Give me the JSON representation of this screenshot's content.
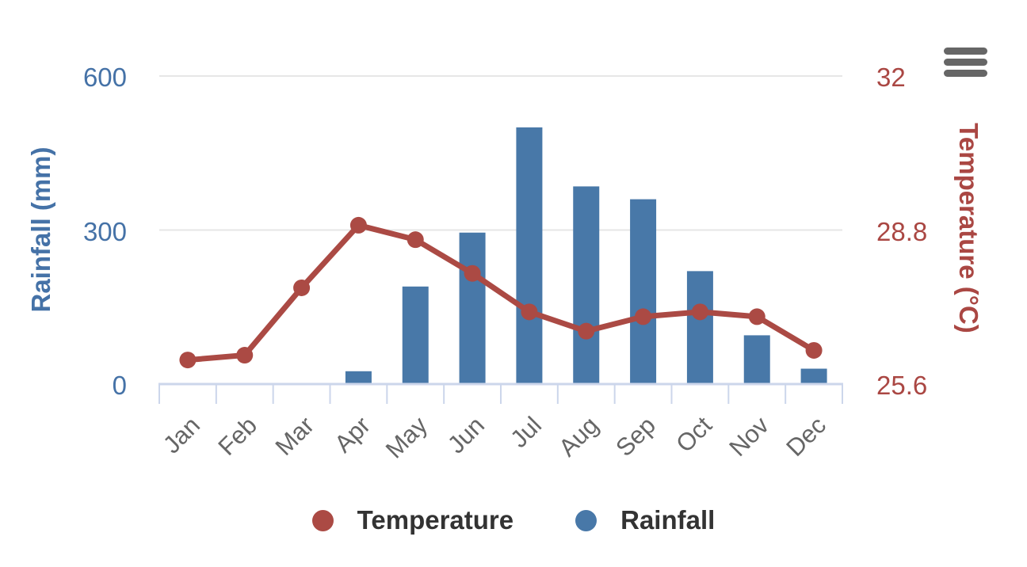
{
  "chart_data": {
    "type": "bar",
    "subtype": "dual-axis column + line",
    "categories": [
      "Jan",
      "Feb",
      "Mar",
      "Apr",
      "May",
      "Jun",
      "Jul",
      "Aug",
      "Sep",
      "Oct",
      "Nov",
      "Dec"
    ],
    "series": [
      {
        "name": "Temperature",
        "type": "line",
        "axis": "right",
        "color": "#ab4a44",
        "values": [
          26.1,
          26.2,
          27.6,
          28.9,
          28.6,
          27.9,
          27.1,
          26.7,
          27.0,
          27.1,
          27.0,
          26.3
        ]
      },
      {
        "name": "Rainfall",
        "type": "bar",
        "axis": "left",
        "color": "#4878a8",
        "values": [
          0,
          0,
          0,
          25,
          190,
          295,
          500,
          385,
          360,
          220,
          95,
          30
        ]
      }
    ],
    "axes": {
      "left": {
        "title": "Rainfall (mm)",
        "min": 0,
        "max": 600,
        "tick_values": [
          0,
          300,
          600
        ],
        "tick_labels": [
          "0",
          "300",
          "600"
        ],
        "color": "#4572a7"
      },
      "right": {
        "title": "Temperature (°C)",
        "min": 25.6,
        "max": 32,
        "tick_values": [
          25.6,
          28.8,
          32
        ],
        "tick_labels": [
          "25.6",
          "28.8",
          "32"
        ],
        "color": "#aa4743"
      }
    },
    "x_label_rotation": -45,
    "grid": true,
    "legend_position": "bottom",
    "legend": [
      {
        "label": "Temperature",
        "color": "#ab4a44"
      },
      {
        "label": "Rainfall",
        "color": "#4878a8"
      }
    ]
  },
  "toolbar": {
    "export_menu_icon": "hamburger-menu-icon"
  },
  "styles": {
    "background": "#ffffff",
    "grid_color": "#e6e6e6",
    "axis_line_color": "#ccd6eb",
    "x_label_color": "#666666",
    "legend_text_color": "#333333",
    "menu_icon_color": "#666666"
  }
}
